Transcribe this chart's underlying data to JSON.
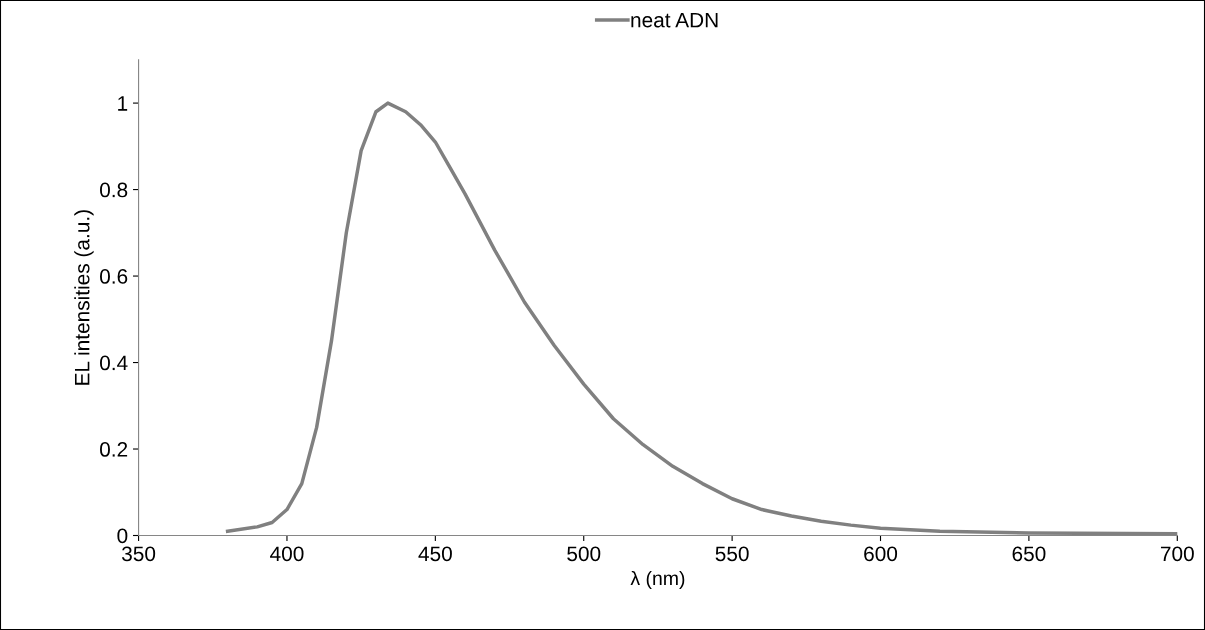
{
  "chart_data": {
    "type": "line",
    "xlabel": "λ (nm)",
    "ylabel": "EL intensities (a.u.)",
    "xlim": [
      350,
      700
    ],
    "xticks": [
      350,
      400,
      450,
      500,
      550,
      600,
      650,
      700
    ],
    "ylim": [
      0,
      1.1
    ],
    "yticks": [
      0,
      0.2,
      0.4,
      0.6,
      0.8,
      1
    ],
    "legend": "top",
    "grid": false,
    "marker": "none",
    "line_style": "solid",
    "series": [
      {
        "name": "neat ADN",
        "color": "#808080",
        "x": [
          380,
          390,
          395,
          400,
          405,
          410,
          415,
          420,
          425,
          430,
          434,
          440,
          445,
          450,
          455,
          460,
          470,
          480,
          490,
          500,
          510,
          520,
          530,
          540,
          550,
          560,
          570,
          580,
          590,
          600,
          620,
          650,
          700
        ],
        "values": [
          0.01,
          0.02,
          0.03,
          0.06,
          0.12,
          0.25,
          0.45,
          0.7,
          0.89,
          0.98,
          1.0,
          0.98,
          0.95,
          0.91,
          0.85,
          0.79,
          0.66,
          0.54,
          0.44,
          0.35,
          0.27,
          0.21,
          0.16,
          0.12,
          0.085,
          0.06,
          0.045,
          0.033,
          0.024,
          0.017,
          0.01,
          0.006,
          0.004
        ]
      }
    ]
  }
}
